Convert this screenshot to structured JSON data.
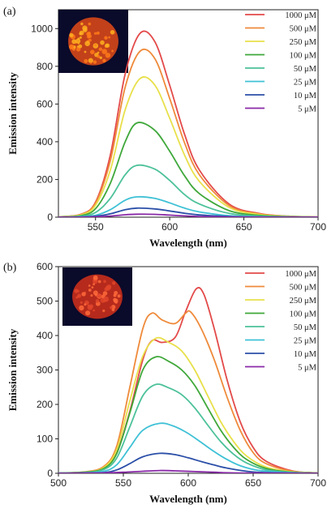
{
  "chart_data": [
    {
      "type": "line",
      "panel_label": "(a)",
      "xlabel": "Wavelength (nm)",
      "ylabel": "Emission intensity",
      "xlim": [
        525,
        700
      ],
      "ylim": [
        0,
        1100
      ],
      "x_ticks": [
        550,
        600,
        650,
        700
      ],
      "y_ticks": [
        0,
        200,
        400,
        600,
        800,
        1000
      ],
      "legend": "top-right",
      "inset_photo": "sample-photo-orange",
      "series": [
        {
          "name": "1000 μM",
          "color": "#e34a4a",
          "points": [
            [
              525,
              2
            ],
            [
              540,
              15
            ],
            [
              550,
              80
            ],
            [
              560,
              330
            ],
            [
              570,
              760
            ],
            [
              580,
              975
            ],
            [
              590,
              930
            ],
            [
              600,
              700
            ],
            [
              610,
              440
            ],
            [
              620,
              250
            ],
            [
              640,
              70
            ],
            [
              660,
              20
            ],
            [
              680,
              5
            ],
            [
              700,
              1
            ]
          ]
        },
        {
          "name": "500 μM",
          "color": "#ef8a3a",
          "points": [
            [
              525,
              2
            ],
            [
              540,
              14
            ],
            [
              550,
              75
            ],
            [
              560,
              300
            ],
            [
              570,
              690
            ],
            [
              580,
              880
            ],
            [
              590,
              840
            ],
            [
              600,
              630
            ],
            [
              610,
              395
            ],
            [
              620,
              225
            ],
            [
              640,
              62
            ],
            [
              660,
              18
            ],
            [
              680,
              5
            ],
            [
              700,
              1
            ]
          ]
        },
        {
          "name": "250 μM",
          "color": "#e8e04a",
          "points": [
            [
              525,
              2
            ],
            [
              540,
              12
            ],
            [
              550,
              63
            ],
            [
              560,
              250
            ],
            [
              570,
              570
            ],
            [
              580,
              735
            ],
            [
              590,
              700
            ],
            [
              600,
              525
            ],
            [
              610,
              330
            ],
            [
              620,
              190
            ],
            [
              640,
              52
            ],
            [
              660,
              15
            ],
            [
              680,
              4
            ],
            [
              700,
              1
            ]
          ]
        },
        {
          "name": "100 μM",
          "color": "#3fa83a",
          "points": [
            [
              525,
              1
            ],
            [
              540,
              8
            ],
            [
              550,
              45
            ],
            [
              560,
              180
            ],
            [
              570,
              400
            ],
            [
              578,
              500
            ],
            [
              590,
              460
            ],
            [
              600,
              350
            ],
            [
              610,
              220
            ],
            [
              620,
              125
            ],
            [
              640,
              35
            ],
            [
              660,
              10
            ],
            [
              680,
              3
            ],
            [
              700,
              1
            ]
          ]
        },
        {
          "name": "50 μM",
          "color": "#4cc19a",
          "points": [
            [
              525,
              1
            ],
            [
              540,
              5
            ],
            [
              550,
              25
            ],
            [
              560,
              100
            ],
            [
              570,
              225
            ],
            [
              578,
              275
            ],
            [
              590,
              255
            ],
            [
              600,
              195
            ],
            [
              610,
              120
            ],
            [
              620,
              70
            ],
            [
              640,
              20
            ],
            [
              660,
              6
            ],
            [
              680,
              2
            ],
            [
              700,
              0
            ]
          ]
        },
        {
          "name": "25 μM",
          "color": "#3fc1d6",
          "points": [
            [
              525,
              0
            ],
            [
              540,
              2
            ],
            [
              550,
              10
            ],
            [
              560,
              40
            ],
            [
              570,
              90
            ],
            [
              578,
              108
            ],
            [
              590,
              100
            ],
            [
              600,
              76
            ],
            [
              610,
              48
            ],
            [
              620,
              28
            ],
            [
              640,
              8
            ],
            [
              660,
              2
            ],
            [
              680,
              1
            ],
            [
              700,
              0
            ]
          ]
        },
        {
          "name": "10 μM",
          "color": "#2b4fa8",
          "points": [
            [
              525,
              0
            ],
            [
              540,
              1
            ],
            [
              550,
              5
            ],
            [
              560,
              18
            ],
            [
              570,
              40
            ],
            [
              578,
              48
            ],
            [
              590,
              44
            ],
            [
              600,
              33
            ],
            [
              610,
              21
            ],
            [
              620,
              12
            ],
            [
              640,
              4
            ],
            [
              660,
              1
            ],
            [
              700,
              0
            ]
          ]
        },
        {
          "name": "5 μM",
          "color": "#8a2aa8",
          "points": [
            [
              525,
              0
            ],
            [
              540,
              0
            ],
            [
              550,
              2
            ],
            [
              560,
              6
            ],
            [
              570,
              13
            ],
            [
              578,
              16
            ],
            [
              590,
              15
            ],
            [
              600,
              11
            ],
            [
              610,
              7
            ],
            [
              620,
              4
            ],
            [
              640,
              1
            ],
            [
              700,
              0
            ]
          ]
        }
      ]
    },
    {
      "type": "line",
      "panel_label": "(b)",
      "xlabel": "Wavelength (nm)",
      "ylabel": "Emission intensity",
      "xlim": [
        500,
        700
      ],
      "ylim": [
        0,
        600
      ],
      "x_ticks": [
        500,
        550,
        600,
        650,
        700
      ],
      "y_ticks": [
        0,
        100,
        200,
        300,
        400,
        500,
        600
      ],
      "legend": "top-right",
      "inset_photo": "sample-photo-red",
      "series": [
        {
          "name": "1000 μM",
          "color": "#e34a4a",
          "points": [
            [
              500,
              1
            ],
            [
              520,
              3
            ],
            [
              535,
              15
            ],
            [
              545,
              60
            ],
            [
              555,
              180
            ],
            [
              565,
              330
            ],
            [
              572,
              385
            ],
            [
              580,
              380
            ],
            [
              590,
              395
            ],
            [
              598,
              470
            ],
            [
              606,
              535
            ],
            [
              612,
              520
            ],
            [
              620,
              420
            ],
            [
              630,
              270
            ],
            [
              640,
              150
            ],
            [
              650,
              75
            ],
            [
              660,
              35
            ],
            [
              680,
              7
            ],
            [
              700,
              1
            ]
          ]
        },
        {
          "name": "500 μM",
          "color": "#ef8a3a",
          "points": [
            [
              500,
              1
            ],
            [
              520,
              4
            ],
            [
              535,
              20
            ],
            [
              545,
              80
            ],
            [
              555,
              250
            ],
            [
              565,
              420
            ],
            [
              572,
              465
            ],
            [
              580,
              445
            ],
            [
              590,
              435
            ],
            [
              598,
              465
            ],
            [
              602,
              468
            ],
            [
              610,
              420
            ],
            [
              620,
              330
            ],
            [
              630,
              220
            ],
            [
              640,
              125
            ],
            [
              650,
              60
            ],
            [
              660,
              28
            ],
            [
              680,
              6
            ],
            [
              700,
              1
            ]
          ]
        },
        {
          "name": "250 μM",
          "color": "#e8e04a",
          "points": [
            [
              500,
              1
            ],
            [
              520,
              3
            ],
            [
              535,
              17
            ],
            [
              545,
              70
            ],
            [
              555,
              210
            ],
            [
              565,
              340
            ],
            [
              575,
              392
            ],
            [
              585,
              380
            ],
            [
              595,
              355
            ],
            [
              605,
              300
            ],
            [
              615,
              225
            ],
            [
              625,
              150
            ],
            [
              635,
              92
            ],
            [
              645,
              50
            ],
            [
              660,
              18
            ],
            [
              680,
              4
            ],
            [
              700,
              1
            ]
          ]
        },
        {
          "name": "100 μM",
          "color": "#3fa83a",
          "points": [
            [
              500,
              1
            ],
            [
              520,
              3
            ],
            [
              535,
              14
            ],
            [
              545,
              58
            ],
            [
              555,
              175
            ],
            [
              565,
              300
            ],
            [
              575,
              338
            ],
            [
              585,
              325
            ],
            [
              595,
              300
            ],
            [
              605,
              255
            ],
            [
              615,
              190
            ],
            [
              625,
              125
            ],
            [
              635,
              75
            ],
            [
              645,
              40
            ],
            [
              660,
              14
            ],
            [
              680,
              3
            ],
            [
              700,
              1
            ]
          ]
        },
        {
          "name": "50 μM",
          "color": "#4cc19a",
          "points": [
            [
              500,
              1
            ],
            [
              520,
              2
            ],
            [
              535,
              11
            ],
            [
              545,
              45
            ],
            [
              555,
              135
            ],
            [
              565,
              225
            ],
            [
              575,
              258
            ],
            [
              585,
              248
            ],
            [
              595,
              228
            ],
            [
              605,
              190
            ],
            [
              615,
              140
            ],
            [
              625,
              92
            ],
            [
              635,
              55
            ],
            [
              645,
              30
            ],
            [
              660,
              10
            ],
            [
              680,
              2
            ],
            [
              700,
              0
            ]
          ]
        },
        {
          "name": "25 μM",
          "color": "#3fc1d6",
          "points": [
            [
              500,
              0
            ],
            [
              520,
              1
            ],
            [
              535,
              6
            ],
            [
              545,
              25
            ],
            [
              555,
              75
            ],
            [
              565,
              125
            ],
            [
              578,
              145
            ],
            [
              588,
              138
            ],
            [
              598,
              120
            ],
            [
              608,
              95
            ],
            [
              618,
              68
            ],
            [
              628,
              44
            ],
            [
              640,
              22
            ],
            [
              655,
              8
            ],
            [
              680,
              2
            ],
            [
              700,
              0
            ]
          ]
        },
        {
          "name": "10 μM",
          "color": "#2b4fa8",
          "points": [
            [
              500,
              0
            ],
            [
              520,
              1
            ],
            [
              535,
              2
            ],
            [
              545,
              10
            ],
            [
              555,
              28
            ],
            [
              565,
              48
            ],
            [
              578,
              58
            ],
            [
              590,
              54
            ],
            [
              600,
              45
            ],
            [
              610,
              34
            ],
            [
              620,
              24
            ],
            [
              630,
              15
            ],
            [
              645,
              6
            ],
            [
              660,
              2
            ],
            [
              700,
              0
            ]
          ]
        },
        {
          "name": "5 μM",
          "color": "#8a2aa8",
          "points": [
            [
              500,
              0
            ],
            [
              530,
              1
            ],
            [
              550,
              3
            ],
            [
              565,
              6
            ],
            [
              578,
              8
            ],
            [
              590,
              7
            ],
            [
              605,
              5
            ],
            [
              620,
              3
            ],
            [
              640,
              1
            ],
            [
              700,
              0
            ]
          ]
        }
      ]
    }
  ]
}
